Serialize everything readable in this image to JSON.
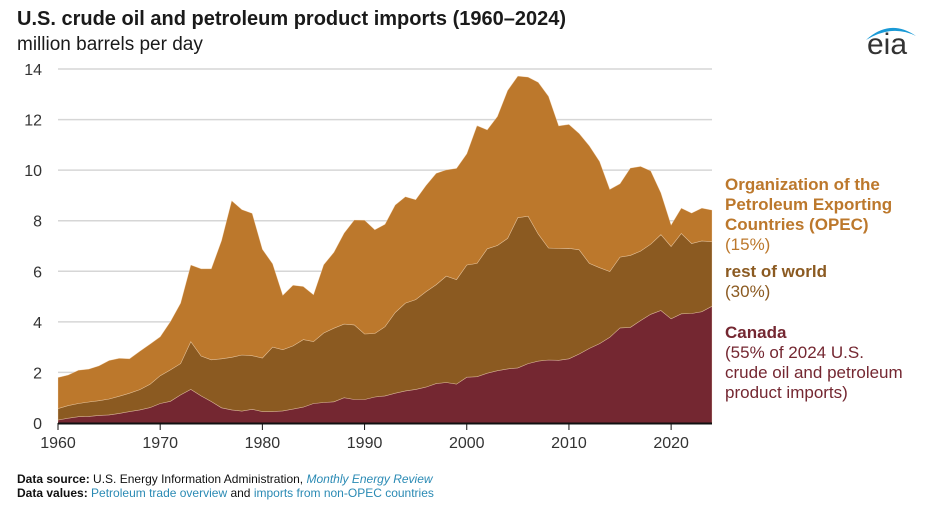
{
  "header": {
    "title": "U.S. crude oil and petroleum product imports (1960–2024)",
    "subtitle": "million barrels per day",
    "logo_text": "eia"
  },
  "legend": {
    "opec": {
      "name": "Organization of the Petroleum Exporting Countries (OPEC)",
      "line1": "Organization of the",
      "line2": "Petroleum Exporting",
      "line3": "Countries (OPEC)",
      "share": "(15%)"
    },
    "row": {
      "name": "rest of world",
      "share": "(30%)"
    },
    "canada": {
      "name": "Canada",
      "share1": "(55% of 2024 U.S.",
      "share2": "crude oil and petroleum",
      "share3": "product imports)"
    }
  },
  "footer": {
    "source_label": "Data source:",
    "source_text": "U.S. Energy Information Administration,",
    "source_link": "Monthly Energy Review",
    "values_label": "Data values:",
    "values_link1": "Petroleum trade overview",
    "values_and": "and",
    "values_link2": "imports from non-OPEC countries"
  },
  "colors": {
    "canada": "#742731",
    "rest_of_world": "#8b5a21",
    "opec": "#bc782c"
  },
  "chart_data": {
    "type": "area",
    "stacked": true,
    "title": "U.S. crude oil and petroleum product imports (1960–2024)",
    "ylabel": "million barrels per day",
    "xlabel": "",
    "xlim": [
      1960,
      2024
    ],
    "ylim": [
      0,
      14
    ],
    "yticks": [
      "0",
      "2",
      "4",
      "6",
      "8",
      "10",
      "12",
      "14"
    ],
    "xticks": [
      "1960",
      "1970",
      "1980",
      "1990",
      "2000",
      "2010",
      "2020"
    ],
    "grid": true,
    "x": [
      1960,
      1961,
      1962,
      1963,
      1964,
      1965,
      1966,
      1967,
      1968,
      1969,
      1970,
      1971,
      1972,
      1973,
      1974,
      1975,
      1976,
      1977,
      1978,
      1979,
      1980,
      1981,
      1982,
      1983,
      1984,
      1985,
      1986,
      1987,
      1988,
      1989,
      1990,
      1991,
      1992,
      1993,
      1994,
      1995,
      1996,
      1997,
      1998,
      1999,
      2000,
      2001,
      2002,
      2003,
      2004,
      2005,
      2006,
      2007,
      2008,
      2009,
      2010,
      2011,
      2012,
      2013,
      2014,
      2015,
      2016,
      2017,
      2018,
      2019,
      2020,
      2021,
      2022,
      2023,
      2024
    ],
    "series": [
      {
        "name": "Canada",
        "share_2024": "55%",
        "values": [
          0.12,
          0.19,
          0.25,
          0.26,
          0.3,
          0.32,
          0.38,
          0.45,
          0.52,
          0.61,
          0.77,
          0.86,
          1.11,
          1.33,
          1.07,
          0.85,
          0.6,
          0.52,
          0.47,
          0.54,
          0.45,
          0.45,
          0.48,
          0.55,
          0.63,
          0.77,
          0.81,
          0.84,
          1.0,
          0.93,
          0.93,
          1.03,
          1.07,
          1.18,
          1.27,
          1.33,
          1.42,
          1.56,
          1.6,
          1.54,
          1.81,
          1.83,
          1.97,
          2.07,
          2.14,
          2.18,
          2.35,
          2.45,
          2.49,
          2.48,
          2.54,
          2.73,
          2.95,
          3.14,
          3.39,
          3.76,
          3.78,
          4.05,
          4.3,
          4.45,
          4.12,
          4.32,
          4.33,
          4.4,
          4.62
        ]
      },
      {
        "name": "rest of world",
        "share_2024": "30%",
        "values": [
          0.45,
          0.5,
          0.52,
          0.57,
          0.58,
          0.63,
          0.68,
          0.73,
          0.8,
          0.92,
          1.1,
          1.24,
          1.24,
          1.89,
          1.58,
          1.65,
          1.94,
          2.08,
          2.22,
          2.12,
          2.12,
          2.55,
          2.42,
          2.5,
          2.67,
          2.45,
          2.75,
          2.91,
          2.91,
          2.95,
          2.59,
          2.51,
          2.74,
          3.19,
          3.47,
          3.55,
          3.77,
          3.91,
          4.21,
          4.13,
          4.44,
          4.48,
          4.92,
          4.95,
          5.16,
          5.94,
          5.83,
          5.02,
          4.43,
          4.42,
          4.37,
          4.12,
          3.36,
          3.0,
          2.6,
          2.8,
          2.85,
          2.75,
          2.77,
          3.0,
          2.86,
          3.18,
          2.77,
          2.8,
          2.55
        ]
      },
      {
        "name": "Organization of the Petroleum Exporting Countries (OPEC)",
        "share_2024": "15%",
        "values": [
          1.23,
          1.21,
          1.32,
          1.3,
          1.38,
          1.52,
          1.5,
          1.36,
          1.52,
          1.59,
          1.54,
          1.91,
          2.39,
          3.03,
          3.45,
          3.6,
          4.67,
          6.19,
          5.75,
          5.63,
          4.3,
          3.3,
          2.15,
          2.4,
          2.1,
          1.85,
          2.7,
          3.0,
          3.6,
          4.15,
          4.5,
          4.1,
          4.05,
          4.25,
          4.21,
          3.95,
          4.2,
          4.4,
          4.2,
          4.4,
          4.4,
          5.45,
          4.7,
          5.1,
          5.85,
          5.6,
          5.5,
          6.0,
          6.0,
          4.85,
          4.9,
          4.6,
          4.65,
          4.2,
          3.25,
          2.9,
          3.45,
          3.35,
          2.9,
          1.65,
          0.85,
          1.0,
          1.2,
          1.3,
          1.25
        ]
      }
    ]
  }
}
